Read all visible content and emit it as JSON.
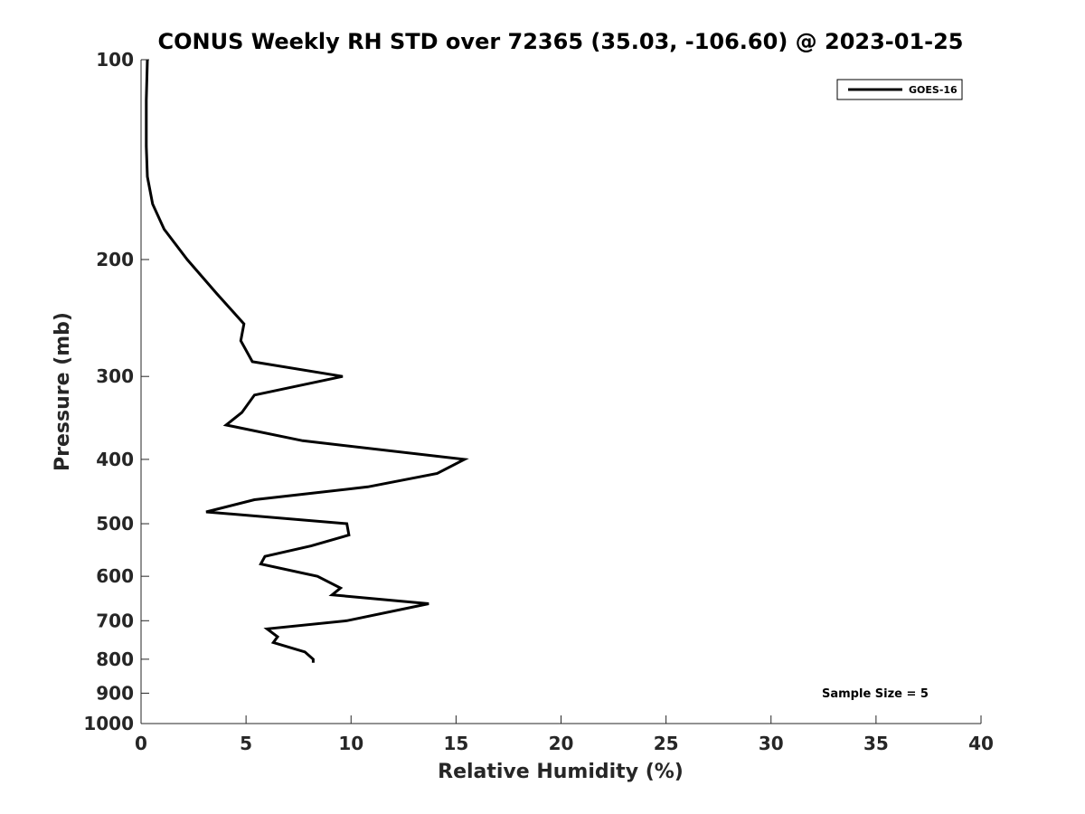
{
  "chart_data": {
    "type": "line",
    "title": "CONUS Weekly RH STD over 72365 (35.03, -106.60) @ 2023-01-25",
    "xlabel": "Relative Humidity (%)",
    "ylabel": "Pressure (mb)",
    "xlim": [
      0,
      40
    ],
    "ylim": [
      100,
      1000
    ],
    "y_scale": "log",
    "y_inverted": true,
    "x_ticks": [
      0,
      5,
      10,
      15,
      20,
      25,
      30,
      35,
      40
    ],
    "y_ticks": [
      100,
      200,
      300,
      400,
      500,
      600,
      700,
      800,
      900,
      1000
    ],
    "grid": false,
    "legend_position": "top-right",
    "series": [
      {
        "name": "GOES-16",
        "color": "#000000",
        "points": [
          {
            "x": 0.3,
            "y": 100
          },
          {
            "x": 0.25,
            "y": 115
          },
          {
            "x": 0.25,
            "y": 135
          },
          {
            "x": 0.3,
            "y": 150
          },
          {
            "x": 0.55,
            "y": 165
          },
          {
            "x": 1.1,
            "y": 180
          },
          {
            "x": 2.2,
            "y": 200
          },
          {
            "x": 3.6,
            "y": 225
          },
          {
            "x": 4.9,
            "y": 250
          },
          {
            "x": 4.75,
            "y": 265
          },
          {
            "x": 5.3,
            "y": 285
          },
          {
            "x": 9.6,
            "y": 300
          },
          {
            "x": 5.4,
            "y": 320
          },
          {
            "x": 4.8,
            "y": 340
          },
          {
            "x": 4.05,
            "y": 355
          },
          {
            "x": 7.7,
            "y": 375
          },
          {
            "x": 15.4,
            "y": 400
          },
          {
            "x": 14.1,
            "y": 420
          },
          {
            "x": 10.8,
            "y": 440
          },
          {
            "x": 5.4,
            "y": 460
          },
          {
            "x": 3.1,
            "y": 480
          },
          {
            "x": 9.8,
            "y": 500
          },
          {
            "x": 9.9,
            "y": 520
          },
          {
            "x": 8.1,
            "y": 540
          },
          {
            "x": 5.9,
            "y": 560
          },
          {
            "x": 5.7,
            "y": 575
          },
          {
            "x": 8.4,
            "y": 600
          },
          {
            "x": 9.5,
            "y": 625
          },
          {
            "x": 9.1,
            "y": 640
          },
          {
            "x": 13.7,
            "y": 660
          },
          {
            "x": 9.8,
            "y": 700
          },
          {
            "x": 6.0,
            "y": 720
          },
          {
            "x": 6.5,
            "y": 740
          },
          {
            "x": 6.3,
            "y": 755
          },
          {
            "x": 7.8,
            "y": 780
          },
          {
            "x": 8.2,
            "y": 800
          },
          {
            "x": 8.2,
            "y": 810
          }
        ]
      }
    ],
    "annotations": [
      {
        "text": "Sample Size = 5",
        "position": "bottom-right"
      }
    ]
  }
}
